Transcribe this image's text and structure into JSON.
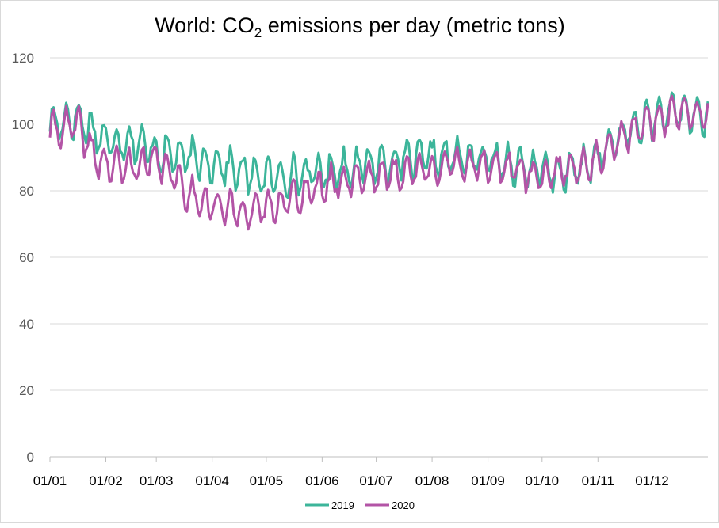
{
  "chart_data": {
    "type": "line",
    "title": {
      "before": "World: CO",
      "sub": "2",
      "after": " emissions per day (metric tons)"
    },
    "xlabel": "",
    "ylabel": "",
    "ylim": [
      0,
      120
    ],
    "yticks": [
      0,
      20,
      40,
      60,
      80,
      100,
      120
    ],
    "grid": true,
    "legend_position": "bottom",
    "x_unit": "day of year",
    "xlim": [
      0,
      365
    ],
    "xticks": [
      {
        "label": "01/01",
        "day": 0
      },
      {
        "label": "01/02",
        "day": 31
      },
      {
        "label": "01/03",
        "day": 59
      },
      {
        "label": "01/04",
        "day": 90
      },
      {
        "label": "01/05",
        "day": 120
      },
      {
        "label": "01/06",
        "day": 151
      },
      {
        "label": "01/07",
        "day": 181
      },
      {
        "label": "01/08",
        "day": 212
      },
      {
        "label": "01/09",
        "day": 243
      },
      {
        "label": "01/10",
        "day": 273
      },
      {
        "label": "01/11",
        "day": 304
      },
      {
        "label": "01/12",
        "day": 334
      }
    ],
    "series": [
      {
        "name": "2019",
        "color": "#3cb59a",
        "trend": [
          [
            0,
            100
          ],
          [
            15,
            102
          ],
          [
            31,
            95
          ],
          [
            45,
            95
          ],
          [
            59,
            92
          ],
          [
            75,
            90
          ],
          [
            95,
            88
          ],
          [
            110,
            85
          ],
          [
            125,
            84
          ],
          [
            140,
            85
          ],
          [
            155,
            86
          ],
          [
            175,
            88
          ],
          [
            195,
            89
          ],
          [
            212,
            90
          ],
          [
            230,
            90
          ],
          [
            250,
            89
          ],
          [
            265,
            87
          ],
          [
            280,
            85
          ],
          [
            295,
            87
          ],
          [
            304,
            90
          ],
          [
            320,
            98
          ],
          [
            335,
            102
          ],
          [
            350,
            104
          ],
          [
            365,
            102
          ]
        ],
        "amplitude": 5,
        "noise": 2.2,
        "seed": 17
      },
      {
        "name": "2020",
        "color": "#b354a6",
        "trend": [
          [
            0,
            98
          ],
          [
            15,
            100
          ],
          [
            25,
            90
          ],
          [
            31,
            88
          ],
          [
            45,
            87
          ],
          [
            55,
            89
          ],
          [
            65,
            87
          ],
          [
            75,
            80
          ],
          [
            85,
            77
          ],
          [
            95,
            75
          ],
          [
            105,
            74
          ],
          [
            115,
            74
          ],
          [
            125,
            76
          ],
          [
            140,
            79
          ],
          [
            155,
            82
          ],
          [
            170,
            84
          ],
          [
            190,
            85
          ],
          [
            212,
            87
          ],
          [
            230,
            88
          ],
          [
            245,
            88
          ],
          [
            260,
            86
          ],
          [
            270,
            84
          ],
          [
            280,
            86
          ],
          [
            290,
            87
          ],
          [
            304,
            89
          ],
          [
            320,
            97
          ],
          [
            335,
            101
          ],
          [
            350,
            104
          ],
          [
            365,
            104
          ]
        ],
        "amplitude": 4.5,
        "noise": 2.0,
        "seed": 41
      }
    ]
  }
}
